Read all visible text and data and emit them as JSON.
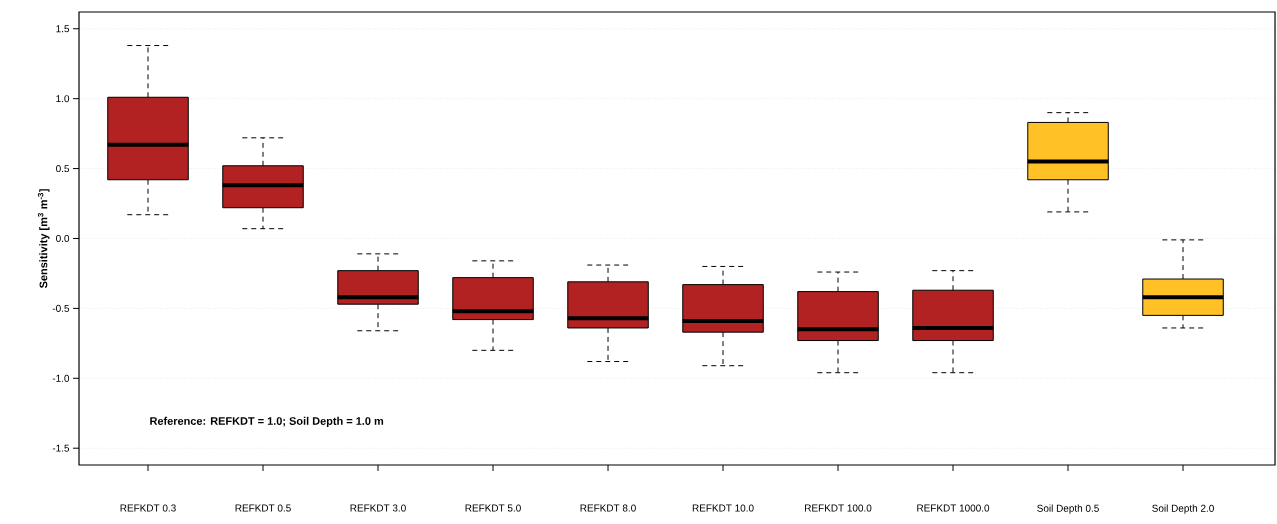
{
  "chart_data": {
    "type": "box",
    "ylabel": "Sensitivity  [m$^{3}$ m$^{-3}$]",
    "categories": [
      "REFKDT 0.3",
      "REFKDT 0.5",
      "REFKDT 3.0",
      "REFKDT 5.0",
      "REFKDT 8.0",
      "REFKDT 10.0",
      "REFKDT 100.0",
      "REFKDT 1000.0",
      "Soil Depth 0.5",
      "Soil Depth 2.0"
    ],
    "colors": [
      "#b22222",
      "#b22222",
      "#b22222",
      "#b22222",
      "#b22222",
      "#b22222",
      "#b22222",
      "#b22222",
      "#ffc125",
      "#ffc125"
    ],
    "boxes": [
      {
        "low": 0.17,
        "q1": 0.42,
        "median": 0.67,
        "q3": 1.01,
        "high": 1.38
      },
      {
        "low": 0.07,
        "q1": 0.22,
        "median": 0.38,
        "q3": 0.52,
        "high": 0.72
      },
      {
        "low": -0.66,
        "q1": -0.47,
        "median": -0.42,
        "q3": -0.23,
        "high": -0.11
      },
      {
        "low": -0.8,
        "q1": -0.58,
        "median": -0.52,
        "q3": -0.28,
        "high": -0.16
      },
      {
        "low": -0.88,
        "q1": -0.64,
        "median": -0.57,
        "q3": -0.31,
        "high": -0.19
      },
      {
        "low": -0.91,
        "q1": -0.67,
        "median": -0.59,
        "q3": -0.33,
        "high": -0.2
      },
      {
        "low": -0.96,
        "q1": -0.73,
        "median": -0.65,
        "q3": -0.38,
        "high": -0.24
      },
      {
        "low": -0.96,
        "q1": -0.73,
        "median": -0.64,
        "q3": -0.37,
        "high": -0.23
      },
      {
        "low": 0.19,
        "q1": 0.42,
        "median": 0.55,
        "q3": 0.83,
        "high": 0.9
      },
      {
        "low": -0.64,
        "q1": -0.55,
        "median": -0.42,
        "q3": -0.29,
        "high": -0.01
      }
    ],
    "ylim": [
      -1.62,
      1.62
    ],
    "yticks": [
      {
        "value": -1.5,
        "label": "-1.5"
      },
      {
        "value": -1,
        "label": "-1.0"
      },
      {
        "value": -0.5,
        "label": "-0.5"
      },
      {
        "value": 0,
        "label": "0.0"
      },
      {
        "value": 0.5,
        "label": "0.5"
      },
      {
        "value": 1,
        "label": "1.0"
      },
      {
        "value": 1.5,
        "label": "1.5"
      }
    ],
    "grid": "y",
    "annotations": [
      "Reference: REFKDT = 1.0; Soil Depth = 1.0 m"
    ]
  }
}
